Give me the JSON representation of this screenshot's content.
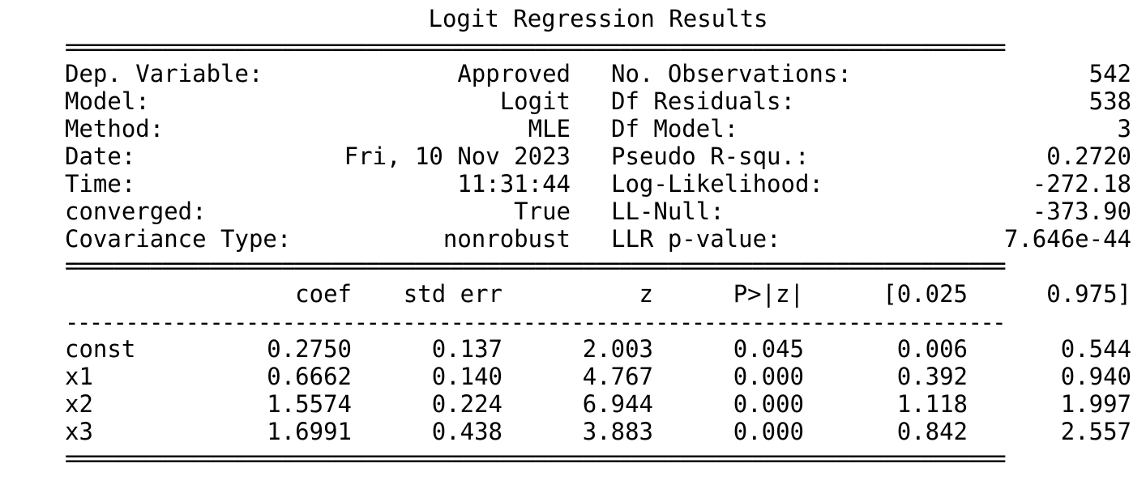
{
  "title": "Logit Regression Results",
  "summary": {
    "left": [
      {
        "label": "Dep. Variable:",
        "value": "Approved"
      },
      {
        "label": "Model:",
        "value": "Logit"
      },
      {
        "label": "Method:",
        "value": "MLE"
      },
      {
        "label": "Date:",
        "value": "Fri, 10 Nov 2023"
      },
      {
        "label": "Time:",
        "value": "11:31:44"
      },
      {
        "label": "converged:",
        "value": "True"
      },
      {
        "label": "Covariance Type:",
        "value": "nonrobust"
      }
    ],
    "right": [
      {
        "label": "No. Observations:",
        "value": "542"
      },
      {
        "label": "Df Residuals:",
        "value": "538"
      },
      {
        "label": "Df Model:",
        "value": "3"
      },
      {
        "label": "Pseudo R-squ.:",
        "value": "0.2720"
      },
      {
        "label": "Log-Likelihood:",
        "value": "-272.18"
      },
      {
        "label": "LL-Null:",
        "value": "-373.90"
      },
      {
        "label": "LLR p-value:",
        "value": "7.646e-44"
      }
    ]
  },
  "coef_table": {
    "headers": [
      "",
      "coef",
      "std err",
      "z",
      "P>|z|",
      "[0.025",
      "0.975]"
    ],
    "rows": [
      [
        "const",
        "0.2750",
        "0.137",
        "2.003",
        "0.045",
        "0.006",
        "0.544"
      ],
      [
        "x1",
        "0.6662",
        "0.140",
        "4.767",
        "0.000",
        "0.392",
        "0.940"
      ],
      [
        "x2",
        "1.5574",
        "0.224",
        "6.944",
        "0.000",
        "1.118",
        "1.997"
      ],
      [
        "x3",
        "1.6991",
        "0.438",
        "3.883",
        "0.000",
        "0.842",
        "2.557"
      ]
    ]
  },
  "rules": {
    "double": "==============================================================================",
    "single": "------------------------------------------------------------------------------"
  }
}
